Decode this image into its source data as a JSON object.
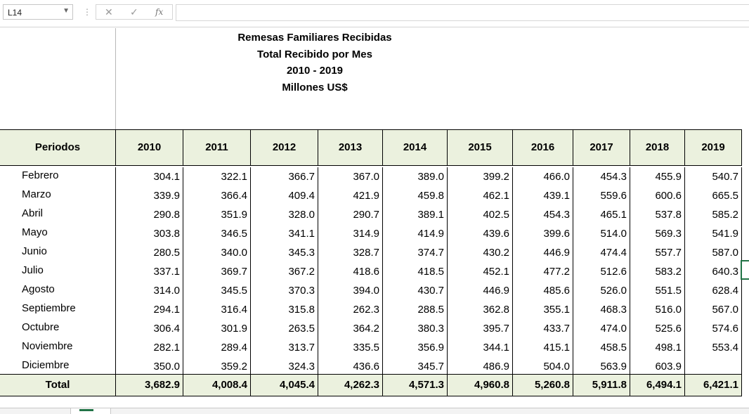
{
  "formula_bar": {
    "name_box": "L14",
    "cancel": "✕",
    "enter": "✓",
    "fx": "fx",
    "formula": ""
  },
  "title_lines": [
    "Remesas Familiares Recibidas",
    "Total Recibido por Mes",
    "2010 - 2019",
    "Millones US$"
  ],
  "table": {
    "header_label": "Periodos",
    "years": [
      "2010",
      "2011",
      "2012",
      "2013",
      "2014",
      "2015",
      "2016",
      "2017",
      "2018",
      "2019"
    ],
    "rows": [
      {
        "label": "Febrero",
        "values": [
          "304.1",
          "322.1",
          "366.7",
          "367.0",
          "389.0",
          "399.2",
          "466.0",
          "454.3",
          "455.9",
          "540.7"
        ]
      },
      {
        "label": "Marzo",
        "values": [
          "339.9",
          "366.4",
          "409.4",
          "421.9",
          "459.8",
          "462.1",
          "439.1",
          "559.6",
          "600.6",
          "665.5"
        ]
      },
      {
        "label": "Abril",
        "values": [
          "290.8",
          "351.9",
          "328.0",
          "290.7",
          "389.1",
          "402.5",
          "454.3",
          "465.1",
          "537.8",
          "585.2"
        ]
      },
      {
        "label": "Mayo",
        "values": [
          "303.8",
          "346.5",
          "341.1",
          "314.9",
          "414.9",
          "439.6",
          "399.6",
          "514.0",
          "569.3",
          "541.9"
        ]
      },
      {
        "label": "Junio",
        "values": [
          "280.5",
          "340.0",
          "345.3",
          "328.7",
          "374.7",
          "430.2",
          "446.9",
          "474.4",
          "557.7",
          "587.0"
        ]
      },
      {
        "label": "Julio",
        "values": [
          "337.1",
          "369.7",
          "367.2",
          "418.6",
          "418.5",
          "452.1",
          "477.2",
          "512.6",
          "583.2",
          "640.3"
        ]
      },
      {
        "label": "Agosto",
        "values": [
          "314.0",
          "345.5",
          "370.3",
          "394.0",
          "430.7",
          "446.9",
          "485.6",
          "526.0",
          "551.5",
          "628.4"
        ]
      },
      {
        "label": "Septiembre",
        "values": [
          "294.1",
          "316.4",
          "315.8",
          "262.3",
          "288.5",
          "362.8",
          "355.1",
          "468.3",
          "516.0",
          "567.0"
        ]
      },
      {
        "label": "Octubre",
        "values": [
          "306.4",
          "301.9",
          "263.5",
          "364.2",
          "380.3",
          "395.7",
          "433.7",
          "474.0",
          "525.6",
          "574.6"
        ]
      },
      {
        "label": "Noviembre",
        "values": [
          "282.1",
          "289.4",
          "313.7",
          "335.5",
          "356.9",
          "344.1",
          "415.1",
          "458.5",
          "498.1",
          "553.4"
        ]
      },
      {
        "label": "Diciembre",
        "values": [
          "350.0",
          "359.2",
          "324.3",
          "436.6",
          "345.7",
          "486.9",
          "504.0",
          "563.9",
          "603.9",
          ""
        ]
      }
    ],
    "total_label": "Total",
    "totals": [
      "3,682.9",
      "4,008.4",
      "4,045.4",
      "4,262.3",
      "4,571.3",
      "4,960.8",
      "5,260.8",
      "5,911.8",
      "6,494.1",
      "6,421.1"
    ]
  },
  "colors": {
    "header_fill": "#ebf1de",
    "selection": "#217346"
  }
}
